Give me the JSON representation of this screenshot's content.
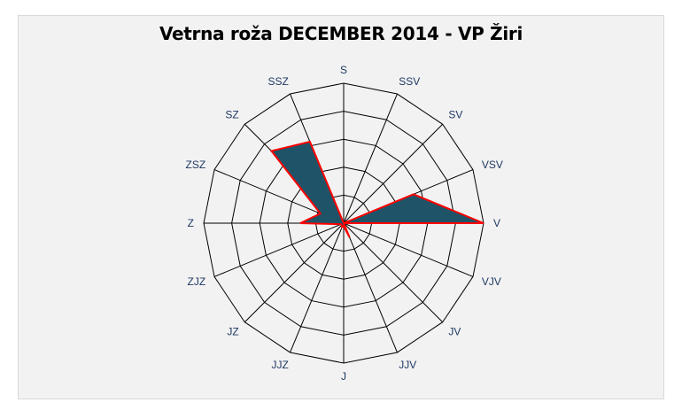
{
  "title": "Vetrna roža DECEMBER 2014 - VP Žiri",
  "colors": {
    "fill": "#1f5468",
    "outline": "#ff0000",
    "grid": "#000000",
    "label": "#1f3864",
    "plot_bg": "#f2f2f2"
  },
  "chart_data": {
    "type": "radar",
    "title": "Vetrna roža DECEMBER 2014 - VP Žiri",
    "categories": [
      "S",
      "SSV",
      "SV",
      "VSV",
      "V",
      "VJV",
      "JV",
      "JJV",
      "J",
      "JJZ",
      "JZ",
      "ZJZ",
      "Z",
      "ZSZ",
      "SZ",
      "SSZ"
    ],
    "values": [
      0,
      0,
      0,
      5.4,
      10,
      0,
      0,
      1.1,
      0.2,
      0.3,
      0.2,
      0.2,
      3.1,
      1.8,
      7.3,
      6.3
    ],
    "rlim": [
      0,
      10
    ],
    "rings": 5,
    "grid": true,
    "legend": "none"
  }
}
